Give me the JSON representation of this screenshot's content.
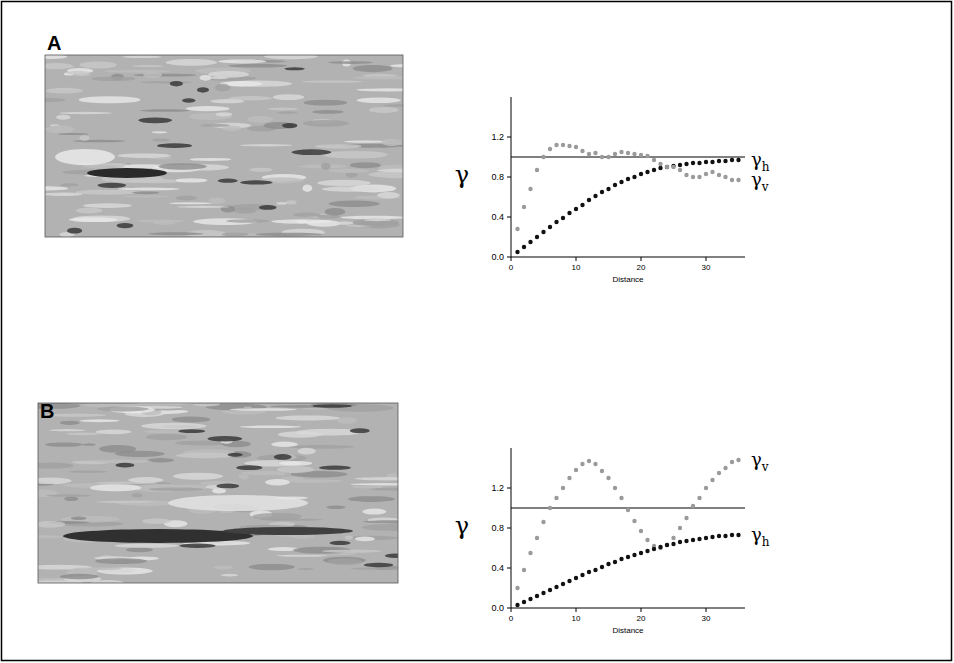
{
  "chart_data": [
    {
      "type": "scatter",
      "panel": "A",
      "x_label": "Distance",
      "y_label": "γ",
      "x": [
        1,
        2,
        3,
        4,
        5,
        6,
        7,
        8,
        9,
        10,
        11,
        12,
        13,
        14,
        15,
        16,
        17,
        18,
        19,
        20,
        21,
        22,
        23,
        24,
        25,
        26,
        27,
        28,
        29,
        30,
        31,
        32,
        33,
        34,
        35
      ],
      "series": [
        {
          "name": "γh",
          "color": "#111111",
          "marker": "circle",
          "values": [
            0.05,
            0.1,
            0.15,
            0.2,
            0.25,
            0.3,
            0.35,
            0.39,
            0.44,
            0.48,
            0.52,
            0.57,
            0.61,
            0.65,
            0.68,
            0.72,
            0.75,
            0.78,
            0.8,
            0.83,
            0.85,
            0.87,
            0.89,
            0.9,
            0.91,
            0.92,
            0.93,
            0.94,
            0.94,
            0.95,
            0.95,
            0.96,
            0.96,
            0.97,
            0.97
          ]
        },
        {
          "name": "γv",
          "color": "#9a9a9a",
          "marker": "circle",
          "values": [
            0.28,
            0.5,
            0.68,
            0.87,
            1.0,
            1.08,
            1.12,
            1.12,
            1.11,
            1.1,
            1.06,
            1.03,
            1.04,
            1.0,
            1.0,
            1.03,
            1.05,
            1.04,
            1.03,
            1.02,
            1.01,
            0.97,
            0.93,
            0.9,
            0.9,
            0.87,
            0.82,
            0.8,
            0.8,
            0.83,
            0.85,
            0.82,
            0.8,
            0.77,
            0.77
          ]
        }
      ],
      "reference_y": 1,
      "xlim": [
        0,
        36
      ],
      "xticks": [
        0,
        10,
        20,
        30
      ],
      "ylim": [
        0,
        1.6
      ],
      "yticks": [
        {
          "value": 0,
          "label": "0.0"
        },
        0.4,
        0.8,
        1.2
      ]
    },
    {
      "type": "scatter",
      "panel": "B",
      "x_label": "Distance",
      "y_label": "γ",
      "x": [
        1,
        2,
        3,
        4,
        5,
        6,
        7,
        8,
        9,
        10,
        11,
        12,
        13,
        14,
        15,
        16,
        17,
        18,
        19,
        20,
        21,
        22,
        23,
        24,
        25,
        26,
        27,
        28,
        29,
        30,
        31,
        32,
        33,
        34,
        35
      ],
      "series": [
        {
          "name": "γv",
          "color": "#9a9a9a",
          "marker": "circle",
          "values": [
            0.2,
            0.38,
            0.55,
            0.7,
            0.86,
            1.0,
            1.1,
            1.2,
            1.3,
            1.38,
            1.44,
            1.47,
            1.44,
            1.37,
            1.3,
            1.2,
            1.1,
            0.98,
            0.87,
            0.77,
            0.68,
            0.62,
            0.6,
            0.63,
            0.7,
            0.8,
            0.9,
            1.02,
            1.1,
            1.2,
            1.28,
            1.35,
            1.4,
            1.46,
            1.48
          ]
        },
        {
          "name": "γh",
          "color": "#111111",
          "marker": "circle",
          "values": [
            0.03,
            0.06,
            0.09,
            0.12,
            0.15,
            0.18,
            0.21,
            0.24,
            0.27,
            0.3,
            0.33,
            0.36,
            0.38,
            0.41,
            0.44,
            0.46,
            0.49,
            0.51,
            0.53,
            0.55,
            0.57,
            0.59,
            0.61,
            0.63,
            0.64,
            0.66,
            0.67,
            0.68,
            0.69,
            0.7,
            0.71,
            0.72,
            0.72,
            0.73,
            0.73
          ]
        }
      ],
      "reference_y": 1,
      "xlim": [
        0,
        36
      ],
      "xticks": [
        0,
        10,
        20,
        30
      ],
      "ylim": [
        0,
        1.6
      ],
      "yticks": [
        {
          "value": 0,
          "label": "0.0"
        },
        0.4,
        0.8,
        1.2
      ]
    }
  ]
}
